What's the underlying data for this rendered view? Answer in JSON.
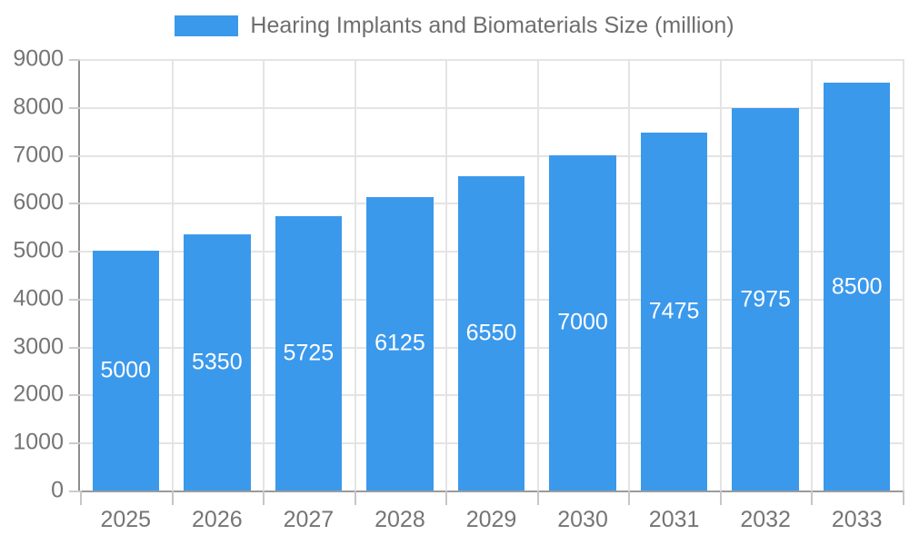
{
  "chart_data": {
    "type": "bar",
    "title": "Hearing Implants and Biomaterials Size (million)",
    "legend": {
      "label": "Hearing Implants and Biomaterials Size (million)",
      "position": "top"
    },
    "categories": [
      "2025",
      "2026",
      "2027",
      "2028",
      "2029",
      "2030",
      "2031",
      "2032",
      "2033"
    ],
    "values": [
      5000,
      5350,
      5725,
      6125,
      6550,
      7000,
      7475,
      7975,
      8500
    ],
    "bar_value_labels": [
      "5000",
      "5350",
      "5725",
      "6125",
      "6550",
      "7000",
      "7475",
      "7975",
      "8500"
    ],
    "xlabel": "",
    "ylabel": "",
    "ylim": [
      0,
      9000
    ],
    "y_tick_step": 1000,
    "y_tick_labels": [
      "0",
      "1000",
      "2000",
      "3000",
      "4000",
      "5000",
      "6000",
      "7000",
      "8000",
      "9000"
    ],
    "grid": true,
    "colors": {
      "bar": "#3b99ec",
      "value_label": "#ffffff",
      "axis_text": "#757575",
      "legend_text": "#6e6e6e",
      "gridline": "#e4e4e4",
      "axis_line": "#8e8e8e",
      "background": "#ffffff"
    }
  }
}
